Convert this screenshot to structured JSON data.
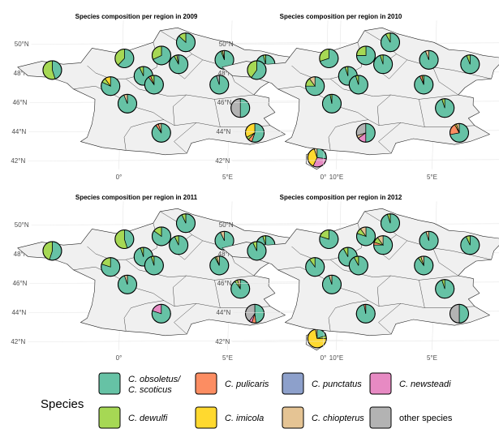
{
  "chart_data": [
    {
      "type": "pie",
      "title": "Species composition per region in 2009",
      "x_ticks": [
        "0°",
        "5°E",
        "10°E"
      ],
      "y_ticks": [
        "42°N",
        "44°N",
        "46°N",
        "48°N",
        "50°N"
      ],
      "pies": [
        {
          "region": "north",
          "lon": 2.9,
          "lat": 50.1,
          "values": {
            "obs": 0.87,
            "dew": 0.13
          }
        },
        {
          "region": "picardie",
          "lon": 1.8,
          "lat": 49.2,
          "values": {
            "obs": 0.68,
            "dew": 0.32
          }
        },
        {
          "region": "normandie",
          "lon": 0.1,
          "lat": 49.0,
          "values": {
            "obs": 0.62,
            "dew": 0.38
          }
        },
        {
          "region": "bretagne",
          "lon": -3.2,
          "lat": 48.2,
          "values": {
            "obs": 0.45,
            "dew": 0.55
          }
        },
        {
          "region": "champagne",
          "lon": 4.7,
          "lat": 48.9,
          "values": {
            "obs": 0.94,
            "dew": 0.03,
            "chi": 0.03
          }
        },
        {
          "region": "idf",
          "lon": 2.6,
          "lat": 48.6,
          "values": {
            "obs": 0.92,
            "dew": 0.05,
            "oth": 0.03
          }
        },
        {
          "region": "centre-n",
          "lon": 1.0,
          "lat": 47.8,
          "values": {
            "obs": 0.93,
            "dew": 0.07
          }
        },
        {
          "region": "lorraine",
          "lon": 6.6,
          "lat": 48.6,
          "values": {
            "obs": 0.96,
            "dew": 0.04
          }
        },
        {
          "region": "pays-loire",
          "lon": -0.5,
          "lat": 47.1,
          "values": {
            "obs": 0.82,
            "dew": 0.08,
            "imi": 0.1
          }
        },
        {
          "region": "centre",
          "lon": 1.5,
          "lat": 47.2,
          "values": {
            "obs": 0.9,
            "dew": 0.06,
            "pul": 0.04
          }
        },
        {
          "region": "bourgogne",
          "lon": 4.5,
          "lat": 47.2,
          "values": {
            "obs": 0.95,
            "oth": 0.05
          }
        },
        {
          "region": "poitou",
          "lon": 0.3,
          "lat": 45.9,
          "values": {
            "obs": 0.94,
            "chi": 0.06
          }
        },
        {
          "region": "rhone-alpes",
          "lon": 5.5,
          "lat": 45.6,
          "values": {
            "obs": 0.5,
            "oth": 0.5
          }
        },
        {
          "region": "midi-pyrenees",
          "lon": 1.9,
          "lat": 43.9,
          "values": {
            "obs": 0.9,
            "pul": 0.05,
            "chi": 0.05
          }
        },
        {
          "region": "paca",
          "lon": 6.2,
          "lat": 43.9,
          "values": {
            "obs": 0.55,
            "imi": 0.33,
            "pul": 0.07,
            "dew": 0.05
          }
        },
        {
          "region": "corse",
          "lon": 9.1,
          "lat": 42.2,
          "values": {
            "obs": 0.27,
            "imi": 0.38,
            "new": 0.3,
            "chi": 0.05
          }
        }
      ]
    },
    {
      "type": "pie",
      "title": "Species composition per region in 2010",
      "x_ticks": [
        "0°",
        "5°E",
        "10°E"
      ],
      "y_ticks": [
        "42°N",
        "44°N",
        "46°N",
        "48°N",
        "50°N"
      ],
      "pies": [
        {
          "region": "north",
          "lon": 2.9,
          "lat": 50.1,
          "values": {
            "obs": 0.92,
            "dew": 0.08
          }
        },
        {
          "region": "picardie",
          "lon": 1.8,
          "lat": 49.2,
          "values": {
            "obs": 0.75,
            "dew": 0.25
          }
        },
        {
          "region": "normandie",
          "lon": 0.1,
          "lat": 49.0,
          "values": {
            "obs": 0.7,
            "dew": 0.3
          }
        },
        {
          "region": "bretagne",
          "lon": -3.2,
          "lat": 48.2,
          "values": {
            "obs": 0.6,
            "dew": 0.4
          }
        },
        {
          "region": "champagne",
          "lon": 4.7,
          "lat": 48.9,
          "values": {
            "obs": 0.94,
            "chi": 0.06
          }
        },
        {
          "region": "idf",
          "lon": 2.6,
          "lat": 48.6,
          "values": {
            "obs": 0.95,
            "dew": 0.05
          }
        },
        {
          "region": "centre-n",
          "lon": 1.0,
          "lat": 47.8,
          "values": {
            "obs": 0.95,
            "dew": 0.05
          }
        },
        {
          "region": "lorraine",
          "lon": 6.6,
          "lat": 48.6,
          "values": {
            "obs": 0.94,
            "dew": 0.06
          }
        },
        {
          "region": "pays-loire",
          "lon": -0.5,
          "lat": 47.1,
          "values": {
            "obs": 0.75,
            "dew": 0.15,
            "chi": 0.1
          }
        },
        {
          "region": "centre",
          "lon": 1.5,
          "lat": 47.2,
          "values": {
            "obs": 0.95,
            "dew": 0.05
          }
        },
        {
          "region": "bourgogne",
          "lon": 4.5,
          "lat": 47.2,
          "values": {
            "obs": 0.93,
            "pul": 0.04,
            "dew": 0.03
          }
        },
        {
          "region": "poitou",
          "lon": 0.3,
          "lat": 45.9,
          "values": {
            "obs": 0.97,
            "dew": 0.03
          }
        },
        {
          "region": "rhone-alpes",
          "lon": 5.5,
          "lat": 45.6,
          "values": {
            "obs": 0.95,
            "dew": 0.05
          }
        },
        {
          "region": "midi-pyrenees",
          "lon": 1.9,
          "lat": 43.9,
          "values": {
            "obs": 0.5,
            "oth": 0.3,
            "new": 0.15,
            "chi": 0.05
          }
        },
        {
          "region": "paca",
          "lon": 6.2,
          "lat": 43.9,
          "values": {
            "obs": 0.72,
            "pul": 0.2,
            "chi": 0.05,
            "imi": 0.03
          }
        },
        {
          "region": "corse",
          "lon": 9.1,
          "lat": 42.2,
          "values": {
            "obs": 0.1,
            "imi": 0.83,
            "pun": 0.04,
            "new": 0.03
          }
        }
      ]
    },
    {
      "type": "pie",
      "title": "Species composition per region in 2011",
      "x_ticks": [
        "0°",
        "5°E",
        "10°E"
      ],
      "y_ticks": [
        "42°N",
        "44°N",
        "46°N",
        "48°N",
        "50°N"
      ],
      "pies": [
        {
          "region": "north",
          "lon": 2.9,
          "lat": 50.1,
          "values": {
            "obs": 0.93,
            "dew": 0.07
          }
        },
        {
          "region": "picardie",
          "lon": 1.8,
          "lat": 49.2,
          "values": {
            "obs": 0.85,
            "dew": 0.15
          }
        },
        {
          "region": "normandie",
          "lon": 0.1,
          "lat": 49.0,
          "values": {
            "obs": 0.45,
            "dew": 0.55
          }
        },
        {
          "region": "bretagne",
          "lon": -3.2,
          "lat": 48.2,
          "values": {
            "obs": 0.55,
            "dew": 0.45
          }
        },
        {
          "region": "champagne",
          "lon": 4.7,
          "lat": 48.9,
          "values": {
            "obs": 0.93,
            "chi": 0.07
          }
        },
        {
          "region": "idf",
          "lon": 2.6,
          "lat": 48.6,
          "values": {
            "obs": 0.93,
            "dew": 0.07
          }
        },
        {
          "region": "centre-n",
          "lon": 1.0,
          "lat": 47.8,
          "values": {
            "obs": 0.95,
            "dew": 0.05
          }
        },
        {
          "region": "lorraine",
          "lon": 6.6,
          "lat": 48.6,
          "values": {
            "obs": 0.95,
            "dew": 0.05
          }
        },
        {
          "region": "pays-loire",
          "lon": -0.5,
          "lat": 47.1,
          "values": {
            "obs": 0.8,
            "dew": 0.2
          }
        },
        {
          "region": "centre",
          "lon": 1.5,
          "lat": 47.2,
          "values": {
            "obs": 0.95,
            "dew": 0.05
          }
        },
        {
          "region": "bourgogne",
          "lon": 4.5,
          "lat": 47.2,
          "values": {
            "obs": 0.92,
            "chi": 0.05,
            "dew": 0.03
          }
        },
        {
          "region": "poitou",
          "lon": 0.3,
          "lat": 45.9,
          "values": {
            "obs": 0.95,
            "chi": 0.05
          }
        },
        {
          "region": "rhone-alpes",
          "lon": 5.5,
          "lat": 45.6,
          "values": {
            "obs": 0.9,
            "chi": 0.05,
            "dew": 0.05
          }
        },
        {
          "region": "midi-pyrenees",
          "lon": 1.9,
          "lat": 43.9,
          "values": {
            "obs": 0.8,
            "new": 0.2
          }
        },
        {
          "region": "paca",
          "lon": 6.2,
          "lat": 43.9,
          "values": {
            "obs": 0.48,
            "oth": 0.4,
            "pul": 0.07,
            "new": 0.05
          }
        },
        {
          "region": "corse",
          "lon": 9.1,
          "lat": 42.2,
          "values": {
            "obs": 0.2,
            "imi": 0.72,
            "dew": 0.05,
            "chi": 0.03
          }
        }
      ]
    },
    {
      "type": "pie",
      "title": "Species composition per region in 2012",
      "x_ticks": [
        "0°",
        "5°E",
        "10°E"
      ],
      "y_ticks": [
        "42°N",
        "44°N",
        "46°N",
        "48°N",
        "50°N"
      ],
      "pies": [
        {
          "region": "north",
          "lon": 2.9,
          "lat": 50.1,
          "values": {
            "obs": 0.95,
            "dew": 0.05
          }
        },
        {
          "region": "picardie",
          "lon": 1.8,
          "lat": 49.2,
          "values": {
            "obs": 0.8,
            "dew": 0.1,
            "chi": 0.1
          }
        },
        {
          "region": "normandie",
          "lon": 0.1,
          "lat": 49.0,
          "values": {
            "obs": 0.8,
            "dew": 0.2
          }
        },
        {
          "region": "bretagne",
          "lon": -3.2,
          "lat": 48.2,
          "values": {
            "obs": 0.93,
            "dew": 0.07
          }
        },
        {
          "region": "champagne",
          "lon": 4.7,
          "lat": 48.9,
          "values": {
            "obs": 0.95,
            "chi": 0.05
          }
        },
        {
          "region": "idf",
          "lon": 2.6,
          "lat": 48.6,
          "values": {
            "obs": 0.75,
            "dew": 0.1,
            "chi": 0.1,
            "pul": 0.05
          }
        },
        {
          "region": "centre-n",
          "lon": 1.0,
          "lat": 47.8,
          "values": {
            "obs": 0.92,
            "dew": 0.08
          }
        },
        {
          "region": "lorraine",
          "lon": 6.6,
          "lat": 48.6,
          "values": {
            "obs": 0.93,
            "dew": 0.07
          }
        },
        {
          "region": "pays-loire",
          "lon": -0.5,
          "lat": 47.1,
          "values": {
            "obs": 0.9,
            "dew": 0.1
          }
        },
        {
          "region": "centre",
          "lon": 1.5,
          "lat": 47.2,
          "values": {
            "obs": 0.92,
            "dew": 0.08
          }
        },
        {
          "region": "bourgogne",
          "lon": 4.5,
          "lat": 47.2,
          "values": {
            "obs": 0.9,
            "chi": 0.05,
            "dew": 0.05
          }
        },
        {
          "region": "poitou",
          "lon": 0.3,
          "lat": 45.9,
          "values": {
            "obs": 0.95,
            "chi": 0.05
          }
        },
        {
          "region": "rhone-alpes",
          "lon": 5.5,
          "lat": 45.6,
          "values": {
            "obs": 0.95,
            "dew": 0.05
          }
        },
        {
          "region": "midi-pyrenees",
          "lon": 1.9,
          "lat": 43.9,
          "values": {
            "obs": 0.97,
            "pul": 0.03
          }
        },
        {
          "region": "paca",
          "lon": 6.2,
          "lat": 43.9,
          "values": {
            "obs": 0.5,
            "oth": 0.5
          }
        },
        {
          "region": "corse",
          "lon": 9.1,
          "lat": 42.2,
          "values": {
            "obs": 0.12,
            "imi": 0.8,
            "new": 0.08
          }
        }
      ]
    }
  ],
  "legend": {
    "title": "Species",
    "colors": {
      "obs": "#66c2a5",
      "pul": "#fc8d62",
      "pun": "#8da0cb",
      "new": "#e78ac3",
      "dew": "#a6d854",
      "imi": "#ffd92f",
      "chi": "#e5c494",
      "oth": "#b3b3b3"
    },
    "items": [
      {
        "key": "obs",
        "line1": "C. obsoletus/",
        "line2": "C. scoticus",
        "italic": true
      },
      {
        "key": "pul",
        "line1": "C. pulicaris",
        "line2": "",
        "italic": true
      },
      {
        "key": "pun",
        "line1": "C. punctatus",
        "line2": "",
        "italic": true
      },
      {
        "key": "new",
        "line1": "C. newsteadi",
        "line2": "",
        "italic": true
      },
      {
        "key": "dew",
        "line1": "C. dewulfi",
        "line2": "",
        "italic": true
      },
      {
        "key": "imi",
        "line1": "C. imicola",
        "line2": "",
        "italic": true
      },
      {
        "key": "chi",
        "line1": "C. chiopterus",
        "line2": "",
        "italic": true
      },
      {
        "key": "oth",
        "line1": "other species",
        "line2": "",
        "italic": false
      }
    ]
  }
}
